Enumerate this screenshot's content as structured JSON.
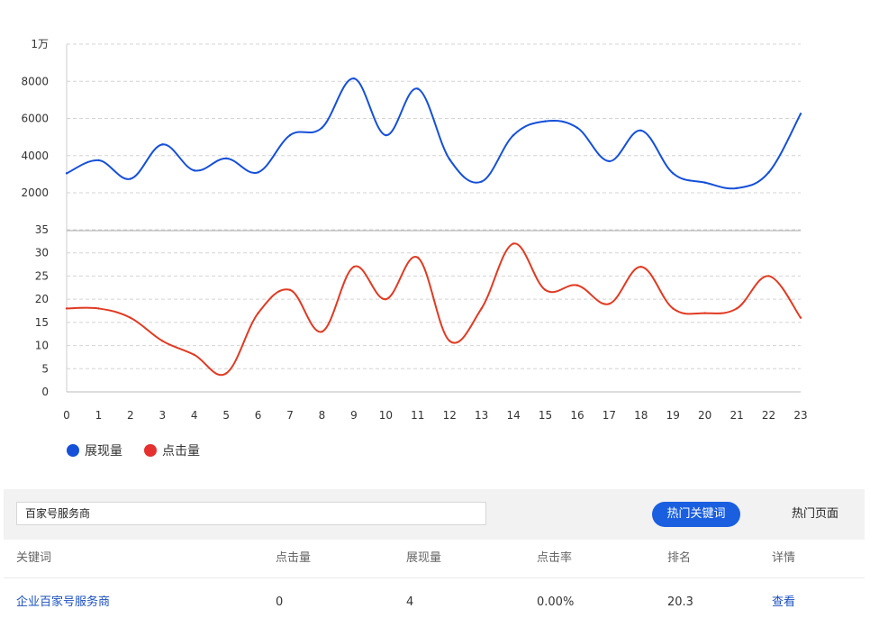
{
  "chart_data": {
    "type": "line",
    "x": [
      0,
      1,
      2,
      3,
      4,
      5,
      6,
      7,
      8,
      9,
      10,
      11,
      12,
      13,
      14,
      15,
      16,
      17,
      18,
      19,
      20,
      21,
      22,
      23
    ],
    "top_panel": {
      "ylim": [
        2000,
        10000
      ],
      "yticks": [
        {
          "value": 2000,
          "label": "2000"
        },
        {
          "value": 4000,
          "label": "4000"
        },
        {
          "value": 6000,
          "label": "6000"
        },
        {
          "value": 8000,
          "label": "8000"
        },
        {
          "value": 10000,
          "label": "1万"
        }
      ],
      "series": [
        {
          "name": "展现量",
          "color": "#1550d8",
          "values": [
            3050,
            3750,
            2750,
            4600,
            3200,
            3850,
            3100,
            5100,
            5500,
            8150,
            5100,
            7600,
            3800,
            2600,
            5100,
            5850,
            5500,
            3700,
            5350,
            3050,
            2550,
            2250,
            3100,
            6250
          ]
        }
      ]
    },
    "bottom_panel": {
      "ylim": [
        0,
        35
      ],
      "yticks": [
        {
          "value": 0,
          "label": "0"
        },
        {
          "value": 5,
          "label": "5"
        },
        {
          "value": 10,
          "label": "10"
        },
        {
          "value": 15,
          "label": "15"
        },
        {
          "value": 20,
          "label": "20"
        },
        {
          "value": 25,
          "label": "25"
        },
        {
          "value": 30,
          "label": "30"
        },
        {
          "value": 35,
          "label": "35"
        }
      ],
      "series": [
        {
          "name": "点击量",
          "color": "#e03a22",
          "values": [
            18,
            18,
            16,
            11,
            8,
            4,
            17,
            22,
            13,
            27,
            20,
            29,
            11,
            18,
            32,
            22,
            23,
            19,
            27,
            18,
            17,
            18,
            25,
            16
          ]
        }
      ]
    },
    "xticks": [
      "0",
      "1",
      "2",
      "3",
      "4",
      "5",
      "6",
      "7",
      "8",
      "9",
      "10",
      "11",
      "12",
      "13",
      "14",
      "15",
      "16",
      "17",
      "18",
      "19",
      "20",
      "21",
      "22",
      "23"
    ],
    "grid": "dashed horizontal",
    "legend": [
      {
        "label": "展现量",
        "color": "#1550d8"
      },
      {
        "label": "点击量",
        "color": "#e53030"
      }
    ],
    "legend_position": "bottom-left"
  },
  "toolbar": {
    "search_value": "百家号服务商",
    "tab_active_label": "热门关键词",
    "tab_inactive_label": "热门页面",
    "accent_color": "#1a5fe0"
  },
  "table": {
    "headers": [
      "关键词",
      "点击量",
      "展现量",
      "点击率",
      "排名",
      "详情"
    ],
    "rows": [
      {
        "keyword": "企业百家号服务商",
        "clicks": "0",
        "impressions": "4",
        "ctr": "0.00%",
        "rank": "20.3",
        "detail": "查看"
      }
    ]
  }
}
